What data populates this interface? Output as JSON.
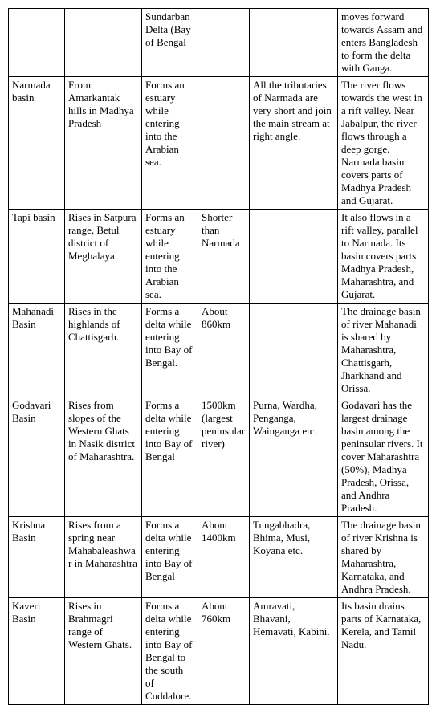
{
  "rows": [
    {
      "c1": "",
      "c2": "",
      "c3": "Sundarban Delta (Bay of Bengal",
      "c4": "",
      "c5": "",
      "c6": "moves forward towards Assam and enters Bangladesh to form the delta with Ganga."
    },
    {
      "c1": "Narmada basin",
      "c2": "From Amarkantak hills in Madhya Pradesh",
      "c3": "Forms an estuary while entering into the Arabian sea.",
      "c4": "",
      "c5": "All the tributaries of Narmada are very short and join the main stream at right angle.",
      "c6": "The river flows towards the west in a rift valley. Near Jabalpur, the river flows through a deep gorge. Narmada basin covers parts of Madhya Pradesh and Gujarat."
    },
    {
      "c1": "Tapi basin",
      "c2": "Rises in Satpura range, Betul district of Meghalaya.",
      "c3": "Forms an estuary while entering into the Arabian sea.",
      "c4": "Shorter than Narmada",
      "c5": "",
      "c6": "It also flows in a rift valley, parallel to Narmada. Its basin covers parts Madhya Pradesh, Maharashtra, and Gujarat."
    },
    {
      "c1": "Mahanadi Basin",
      "c2": "Rises in the highlands of Chattisgarh.",
      "c3": "Forms a delta while entering into Bay of Bengal.",
      "c4": "About 860km",
      "c5": "",
      "c6": "The drainage basin of river Mahanadi is shared by Maharashtra, Chattisgarh, Jharkhand and Orissa."
    },
    {
      "c1": "Godavari Basin",
      "c2": "Rises from slopes of the Western Ghats in Nasik district of Maharashtra.",
      "c3": "Forms a delta while entering into Bay of Bengal",
      "c4": "1500km (largest peninsular river)",
      "c5": "Purna, Wardha, Penganga, Wainganga etc.",
      "c6": "Godavari has the largest drainage basin among the peninsular rivers. It cover Maharashtra (50%), Madhya Pradesh, Orissa, and Andhra Pradesh."
    },
    {
      "c1": "Krishna Basin",
      "c2": "Rises from a spring near Mahabaleashwar in Maharashtra",
      "c3": "Forms a delta while entering into Bay of Bengal",
      "c4": "About 1400km",
      "c5": "Tungabhadra, Bhima, Musi, Koyana etc.",
      "c6": "The drainage basin of river Krishna is shared by Maharashtra, Karnataka, and Andhra Pradesh."
    },
    {
      "c1": "Kaveri Basin",
      "c2": "Rises in Brahmagri range of Western Ghats.",
      "c3": "Forms a delta while entering into Bay of Bengal to the south of Cuddalore.",
      "c4": "About 760km",
      "c5": "Amravati, Bhavani, Hemavati, Kabini.",
      "c6": "Its basin drains parts of Karnataka, Kerela, and Tamil Nadu."
    }
  ]
}
